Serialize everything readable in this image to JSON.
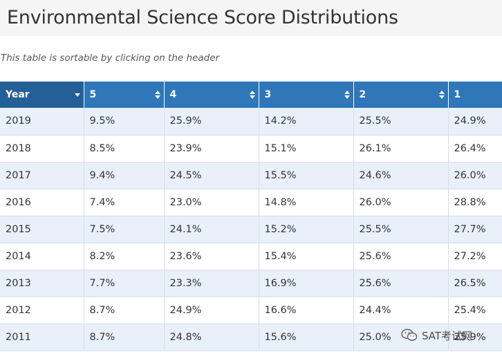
{
  "page": {
    "title": "Environmental Science Score Distributions",
    "subtitle": "This table is sortable by clicking on the header"
  },
  "table": {
    "columns": [
      {
        "label": "Year",
        "sort_icon": "caret-down-icon"
      },
      {
        "label": "5",
        "sort_icon": "sort-both-icon"
      },
      {
        "label": "4",
        "sort_icon": "sort-both-icon"
      },
      {
        "label": "3",
        "sort_icon": "sort-both-icon"
      },
      {
        "label": "2",
        "sort_icon": "sort-both-icon"
      },
      {
        "label": "1",
        "sort_icon": ""
      }
    ],
    "rows": [
      {
        "year": "2019",
        "s5": "9.5%",
        "s4": "25.9%",
        "s3": "14.2%",
        "s2": "25.5%",
        "s1": "24.9%"
      },
      {
        "year": "2018",
        "s5": "8.5%",
        "s4": "23.9%",
        "s3": "15.1%",
        "s2": "26.1%",
        "s1": "26.4%"
      },
      {
        "year": "2017",
        "s5": "9.4%",
        "s4": "24.5%",
        "s3": "15.5%",
        "s2": "24.6%",
        "s1": "26.0%"
      },
      {
        "year": "2016",
        "s5": "7.4%",
        "s4": "23.0%",
        "s3": "14.8%",
        "s2": "26.0%",
        "s1": "28.8%"
      },
      {
        "year": "2015",
        "s5": "7.5%",
        "s4": "24.1%",
        "s3": "15.2%",
        "s2": "25.5%",
        "s1": "27.7%"
      },
      {
        "year": "2014",
        "s5": "8.2%",
        "s4": "23.6%",
        "s3": "15.4%",
        "s2": "25.6%",
        "s1": "27.2%"
      },
      {
        "year": "2013",
        "s5": "7.7%",
        "s4": "23.3%",
        "s3": "16.9%",
        "s2": "25.6%",
        "s1": "26.5%"
      },
      {
        "year": "2012",
        "s5": "8.7%",
        "s4": "24.9%",
        "s3": "16.6%",
        "s2": "24.4%",
        "s1": "25.4%"
      },
      {
        "year": "2011",
        "s5": "8.7%",
        "s4": "24.8%",
        "s3": "15.6%",
        "s2": "25.0%",
        "s1": "25.9%"
      }
    ]
  },
  "watermark": {
    "text": "SAT考试网",
    "icon": "wechat-icon"
  },
  "colors": {
    "header_bg": "#2f77b8",
    "header_sorted_bg": "#245f98",
    "row_stripe": "#e8f0fa"
  }
}
